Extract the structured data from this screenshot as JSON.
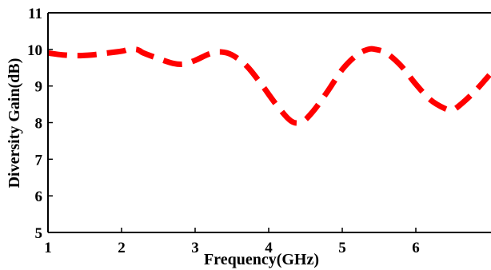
{
  "chart_data": {
    "type": "line",
    "title": "",
    "xlabel": "Frequency(GHz)",
    "ylabel": "Diversity Gain(dB)",
    "xlim": [
      1,
      7
    ],
    "ylim": [
      5,
      11
    ],
    "xticks": [
      1,
      2,
      3,
      4,
      5,
      6
    ],
    "yticks": [
      5,
      6,
      7,
      8,
      9,
      10,
      11
    ],
    "grid": false,
    "legend": "none",
    "series": [
      {
        "color": "#ff0000",
        "line_style": "dashed",
        "x": [
          1.0,
          1.2,
          1.4,
          1.6,
          1.8,
          2.0,
          2.1,
          2.2,
          2.25,
          2.3,
          2.5,
          2.7,
          2.85,
          3.0,
          3.2,
          3.35,
          3.5,
          3.7,
          3.9,
          4.1,
          4.3,
          4.45,
          4.6,
          4.8,
          5.0,
          5.2,
          5.35,
          5.45,
          5.6,
          5.8,
          6.0,
          6.2,
          6.4,
          6.5,
          6.6,
          6.8,
          7.0
        ],
        "y": [
          9.9,
          9.85,
          9.83,
          9.85,
          9.9,
          9.95,
          10.0,
          10.0,
          9.96,
          9.9,
          9.75,
          9.62,
          9.6,
          9.7,
          9.88,
          9.93,
          9.85,
          9.55,
          9.05,
          8.5,
          8.05,
          8.02,
          8.3,
          8.85,
          9.45,
          9.85,
          10.0,
          10.0,
          9.9,
          9.55,
          9.05,
          8.62,
          8.38,
          8.35,
          8.48,
          8.85,
          9.3
        ]
      }
    ]
  }
}
